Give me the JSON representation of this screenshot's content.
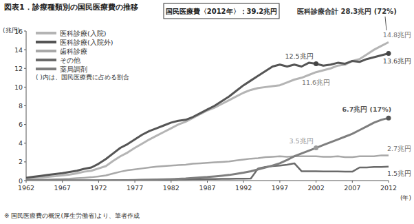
{
  "chart_data": {
    "type": "line",
    "title": "図表1．診療種類別の国民医療費の推移",
    "subtitle": "国民医療費〈2012年〉：39.2兆円",
    "y_label": "(兆円)",
    "x_label": "(年)",
    "note": "( )内は、国民医療費に占める割合",
    "source": "※ 国民医療費の概況(厚生労働省)より、筆者作成",
    "annotations": [
      {
        "text": "医科診療合計 28.3兆円 (72%)"
      },
      {
        "text": "14.8兆円",
        "x": 2012,
        "y": 14.8
      },
      {
        "text": "13.6兆円",
        "x": 2012,
        "y": 13.6
      },
      {
        "text": "12.5兆円",
        "x": 2002,
        "y": 12.5
      },
      {
        "text": "11.6兆円",
        "x": 2002,
        "y": 11.6
      },
      {
        "text": "6.7兆円 (17%)",
        "x": 2012,
        "y": 6.7
      },
      {
        "text": "3.5兆円",
        "x": 2002,
        "y": 3.5
      },
      {
        "text": "2.7兆円",
        "x": 2012,
        "y": 2.7
      },
      {
        "text": "1.5兆円",
        "x": 2012,
        "y": 1.5
      }
    ],
    "x": [
      1962,
      1963,
      1964,
      1965,
      1966,
      1967,
      1968,
      1969,
      1970,
      1971,
      1972,
      1973,
      1974,
      1975,
      1976,
      1977,
      1978,
      1979,
      1980,
      1981,
      1982,
      1983,
      1984,
      1985,
      1986,
      1987,
      1988,
      1989,
      1990,
      1991,
      1992,
      1993,
      1994,
      1995,
      1996,
      1997,
      1998,
      1999,
      2000,
      2001,
      2002,
      2003,
      2004,
      2005,
      2006,
      2007,
      2008,
      2009,
      2010,
      2011,
      2012
    ],
    "xlim": [
      1962,
      2012
    ],
    "xticks": [
      1962,
      1967,
      1972,
      1977,
      1982,
      1987,
      1992,
      1997,
      2002,
      2007,
      2012
    ],
    "ylim": [
      0,
      16
    ],
    "yticks": [
      0,
      2,
      4,
      6,
      8,
      10,
      12,
      14,
      16
    ],
    "grid": false,
    "legend": "upper left",
    "series": [
      {
        "name": "医科診療(入院)",
        "color": "#b4b4b4",
        "values": [
          0.2,
          0.25,
          0.32,
          0.4,
          0.47,
          0.55,
          0.65,
          0.78,
          0.95,
          1.05,
          1.3,
          1.55,
          2.1,
          2.6,
          3.0,
          3.5,
          3.95,
          4.4,
          4.8,
          5.2,
          5.6,
          6.0,
          6.3,
          6.7,
          7.1,
          7.5,
          7.8,
          8.2,
          8.6,
          9.0,
          9.4,
          9.7,
          9.9,
          10.0,
          10.1,
          10.2,
          10.5,
          10.8,
          11.0,
          11.3,
          11.6,
          11.8,
          12.0,
          12.3,
          12.4,
          12.8,
          13.0,
          13.5,
          14.0,
          14.4,
          14.8
        ]
      },
      {
        "name": "医科診療(入院外)",
        "color": "#555555",
        "values": [
          0.3,
          0.4,
          0.5,
          0.6,
          0.7,
          0.8,
          0.92,
          1.05,
          1.25,
          1.4,
          1.8,
          2.3,
          2.9,
          3.5,
          3.9,
          4.4,
          4.9,
          5.3,
          5.6,
          5.9,
          6.2,
          6.4,
          6.5,
          6.8,
          7.2,
          7.6,
          8.0,
          8.5,
          9.0,
          9.6,
          10.2,
          10.7,
          11.2,
          11.7,
          12.2,
          12.4,
          12.2,
          12.4,
          12.2,
          12.6,
          12.5,
          12.3,
          12.4,
          12.6,
          12.5,
          12.8,
          12.7,
          13.0,
          13.2,
          13.4,
          13.6
        ]
      },
      {
        "name": "歯科診療",
        "color": "#a8a8a8",
        "values": [
          0.05,
          0.07,
          0.09,
          0.11,
          0.14,
          0.17,
          0.2,
          0.25,
          0.3,
          0.36,
          0.45,
          0.55,
          0.75,
          0.95,
          1.1,
          1.2,
          1.3,
          1.4,
          1.5,
          1.55,
          1.6,
          1.65,
          1.7,
          1.8,
          1.85,
          1.9,
          1.95,
          2.0,
          2.05,
          2.15,
          2.25,
          2.35,
          2.4,
          2.5,
          2.55,
          2.6,
          2.55,
          2.6,
          2.6,
          2.6,
          2.6,
          2.55,
          2.55,
          2.6,
          2.5,
          2.5,
          2.6,
          2.6,
          2.6,
          2.7,
          2.7
        ]
      },
      {
        "name": "その他",
        "color": "#6a6a6a",
        "values": [
          0.02,
          0.02,
          0.02,
          0.02,
          0.02,
          0.02,
          0.02,
          0.02,
          0.02,
          0.02,
          0.02,
          0.02,
          0.03,
          0.04,
          0.05,
          0.06,
          0.07,
          0.08,
          0.09,
          0.1,
          0.11,
          0.12,
          0.13,
          0.14,
          0.15,
          0.16,
          0.17,
          0.18,
          0.19,
          0.2,
          0.21,
          0.22,
          1.3,
          1.45,
          1.55,
          1.6,
          1.7,
          1.85,
          1.0,
          1.0,
          1.0,
          0.98,
          0.98,
          0.98,
          0.95,
          0.95,
          1.4,
          1.4,
          1.45,
          1.45,
          1.5
        ]
      },
      {
        "name": "薬局調剤",
        "color": "#7e7e7e",
        "values": [
          0.01,
          0.01,
          0.01,
          0.01,
          0.01,
          0.01,
          0.01,
          0.01,
          0.01,
          0.01,
          0.01,
          0.01,
          0.01,
          0.02,
          0.03,
          0.05,
          0.07,
          0.09,
          0.11,
          0.13,
          0.15,
          0.18,
          0.22,
          0.28,
          0.33,
          0.38,
          0.45,
          0.52,
          0.6,
          0.72,
          0.85,
          1.0,
          1.2,
          1.4,
          1.6,
          1.85,
          2.2,
          2.6,
          2.9,
          3.2,
          3.5,
          3.8,
          4.1,
          4.4,
          4.7,
          5.0,
          5.4,
          5.8,
          6.2,
          6.5,
          6.7
        ]
      }
    ]
  }
}
